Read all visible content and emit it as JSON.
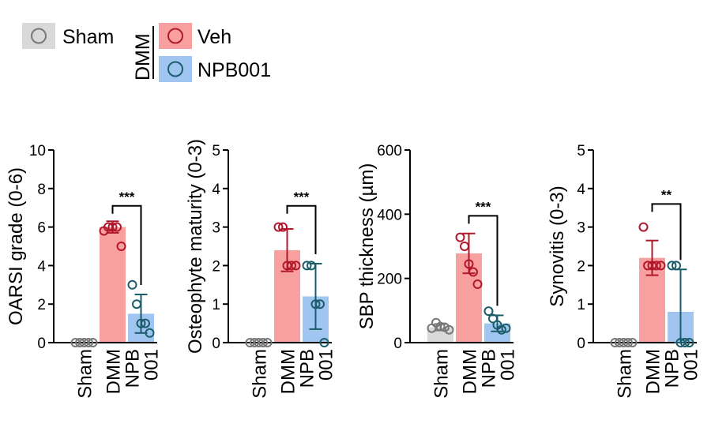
{
  "legend": {
    "items": [
      {
        "label": "Sham",
        "fill": "#d9d9d9",
        "stroke": "#777777"
      },
      {
        "label": "Veh",
        "fill": "#f8a0a0",
        "stroke": "#b2182b"
      },
      {
        "label": "NPB001",
        "fill": "#9fc5f0",
        "stroke": "#1c5d6b"
      }
    ],
    "group_label": "DMM"
  },
  "chart_data": [
    {
      "type": "bar",
      "ylabel": "OARSI grade (0-6)",
      "ylim": [
        0,
        10
      ],
      "yticks": [
        0,
        2,
        4,
        6,
        8,
        10
      ],
      "categories": [
        "Sham",
        "DMM",
        "NPB\n001"
      ],
      "means": [
        0,
        6.0,
        1.5
      ],
      "sd": [
        0,
        0.3,
        1.0
      ],
      "points": [
        [
          0,
          0,
          0,
          0,
          0
        ],
        [
          5.8,
          6.0,
          6.0,
          6.0,
          5.0
        ],
        [
          3.0,
          2.0,
          1.0,
          1.0,
          0.5
        ]
      ],
      "significance": {
        "from": 1,
        "to": 2,
        "label": "***",
        "y": 7.1
      }
    },
    {
      "type": "bar",
      "ylabel": "Osteophyte maturity (0-3)",
      "ylim": [
        0,
        5
      ],
      "yticks": [
        0,
        1,
        2,
        3,
        4,
        5
      ],
      "categories": [
        "Sham",
        "DMM",
        "NPB\n001"
      ],
      "means": [
        0,
        2.4,
        1.2
      ],
      "sd": [
        0,
        0.55,
        0.85
      ],
      "points": [
        [
          0,
          0,
          0,
          0,
          0
        ],
        [
          3.0,
          3.0,
          2.0,
          2.0,
          2.0
        ],
        [
          2.0,
          2.0,
          1.0,
          1.0,
          0.0
        ]
      ],
      "significance": {
        "from": 1,
        "to": 2,
        "label": "***",
        "y": 3.55
      }
    },
    {
      "type": "bar",
      "ylabel": "SBP thickness (µm)",
      "ylim": [
        0,
        600
      ],
      "yticks": [
        0,
        200,
        400,
        600
      ],
      "categories": [
        "Sham",
        "DMM",
        "NPB\n001"
      ],
      "means": [
        48,
        278,
        60
      ],
      "sd": [
        10,
        62,
        25
      ],
      "points": [
        [
          45,
          62,
          50,
          48,
          40
        ],
        [
          328,
          300,
          245,
          220,
          182
        ],
        [
          98,
          75,
          55,
          40,
          45
        ]
      ],
      "significance": {
        "from": 1,
        "to": 2,
        "label": "***",
        "y": 395
      }
    },
    {
      "type": "bar",
      "ylabel": "Synovitis (0-3)",
      "ylim": [
        0,
        5
      ],
      "yticks": [
        0,
        1,
        2,
        3,
        4,
        5
      ],
      "categories": [
        "Sham",
        "DMM",
        "NPB\n001"
      ],
      "means": [
        0,
        2.2,
        0.8
      ],
      "sd": [
        0,
        0.45,
        1.1
      ],
      "points": [
        [
          0,
          0,
          0,
          0,
          0
        ],
        [
          3.0,
          2.0,
          2.0,
          2.0,
          2.0
        ],
        [
          2.0,
          2.0,
          0.0,
          0.0,
          0.0
        ]
      ],
      "significance": {
        "from": 1,
        "to": 2,
        "label": "**",
        "y": 3.6
      }
    }
  ]
}
